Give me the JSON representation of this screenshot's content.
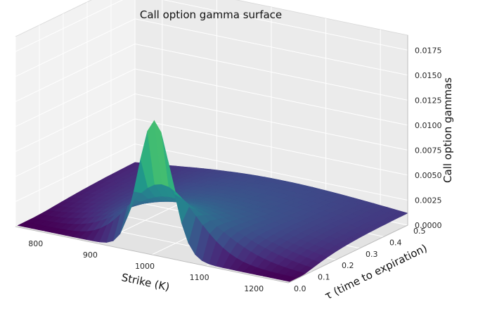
{
  "chart_data": {
    "type": "surface",
    "title": "Call option gamma surface",
    "xlabel": "Strike (K)",
    "ylabel": "τ (time to expiration)",
    "zlabel": "Call option gammas",
    "x_ticks": [
      "800",
      "900",
      "1000",
      "1100",
      "1200"
    ],
    "y_ticks": [
      "0.0",
      "0.1",
      "0.2",
      "0.3",
      "0.4",
      "0.5"
    ],
    "z_ticks": [
      "0.0000",
      "0.0025",
      "0.0050",
      "0.0075",
      "0.0100",
      "0.0125",
      "0.0150",
      "0.0175"
    ],
    "xlim": [
      750,
      1250
    ],
    "ylim": [
      0.0,
      0.5
    ],
    "zlim": [
      0.0,
      0.019
    ],
    "grid": true,
    "colormap": "viridis",
    "surface": {
      "underlying_price": 1000,
      "strike_range": [
        750,
        1250
      ],
      "tau_range": [
        0.01,
        0.5
      ],
      "peak_gamma": 0.0163,
      "peak_location": {
        "strike": 1000,
        "tau": 0.01
      },
      "gamma_at_tau_0.5_atm": 0.0045
    }
  }
}
